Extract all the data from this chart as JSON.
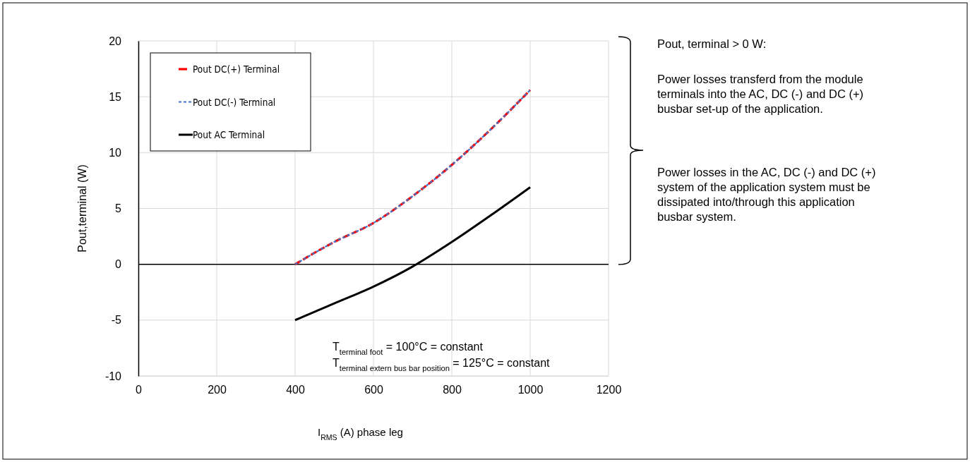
{
  "chart_data": {
    "type": "line",
    "xlabel": "I$_{RMS}$ (A) phase leg",
    "ylabel": "Pout,terminal (W)",
    "x": [
      400,
      500,
      600,
      700,
      800,
      900,
      1000
    ],
    "series": [
      {
        "name": "Pout DC(+) Terminal",
        "color": "#ff0000",
        "line_style": "dashed",
        "values": [
          0,
          2.0,
          3.7,
          6.1,
          8.9,
          12.1,
          15.6
        ]
      },
      {
        "name": "Pout DC(-) Terminal",
        "color": "#4472c4",
        "line_style": "dotted",
        "values": [
          0,
          2.0,
          3.7,
          6.1,
          8.9,
          12.1,
          15.6
        ]
      },
      {
        "name": "Pout AC Terminal",
        "color": "#000000",
        "line_style": "solid",
        "values": [
          -5,
          -3.5,
          -2.0,
          -0.2,
          2.0,
          4.4,
          6.9
        ]
      }
    ],
    "xlim": [
      0,
      1200
    ],
    "xticks": [
      0,
      200,
      400,
      600,
      800,
      1000,
      1200
    ],
    "ylim": [
      -10,
      20
    ],
    "yticks": [
      -10,
      -5,
      0,
      5,
      10,
      15,
      20
    ],
    "grid": true,
    "legend": "top left",
    "marker": "none",
    "annotations": [
      "T$_{terminal foot}$ = 100°C = constant",
      "T$_{terminal extern bus bar position}$ = 125°C = constant",
      "Pout, terminal > 0 W:",
      "Power losses transferd from the module terminals into the AC, DC (-) and DC (+) busbar set-up of the application.",
      "Power losses in the AC, DC (-) and DC (+) system of the application system must be dissipated into/through this application busbar system."
    ]
  }
}
